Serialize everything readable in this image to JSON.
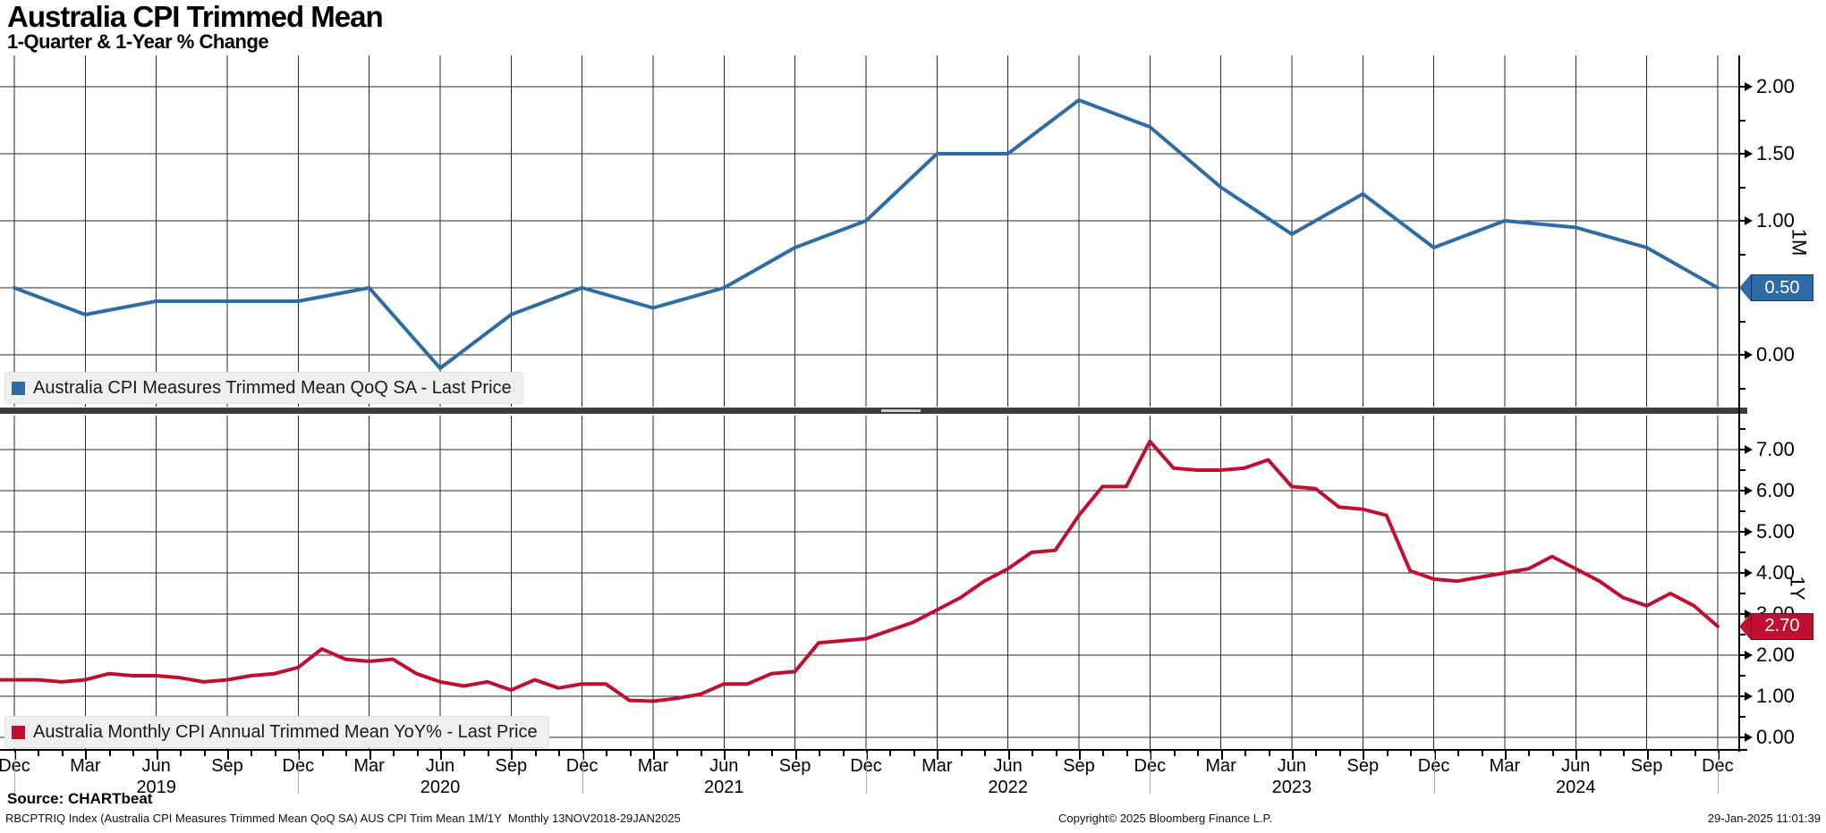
{
  "header": {
    "title": "Australia CPI Trimmed Mean",
    "subtitle": "1-Quarter & 1-Year % Change"
  },
  "colors": {
    "qoq_blue": "#2e6ca8",
    "yoy_red": "#c01031",
    "legend_bg": "#efefef",
    "grid": "#2a2a2a"
  },
  "chart_data": [
    {
      "type": "line",
      "panel": "top",
      "legend": "Australia CPI Measures Trimmed Mean QoQ SA - Last Price",
      "axis_panel_label": "1M",
      "last_price_label": "0.50",
      "line_color": "#2e6ca8",
      "ylim": [
        -0.39,
        2.23
      ],
      "y_ticks": [
        {
          "label": "2.00",
          "value": 2.0
        },
        {
          "label": "1.50",
          "value": 1.5
        },
        {
          "label": "1.00",
          "value": 1.0
        },
        {
          "label": "0.50",
          "value": 0.5
        },
        {
          "label": "0.00",
          "value": 0.0
        }
      ],
      "frequency": "quarterly",
      "x_quarters": [
        "Dec-2018",
        "Mar-2019",
        "Jun-2019",
        "Sep-2019",
        "Dec-2019",
        "Mar-2020",
        "Jun-2020",
        "Sep-2020",
        "Dec-2020",
        "Mar-2021",
        "Jun-2021",
        "Sep-2021",
        "Dec-2021",
        "Mar-2022",
        "Jun-2022",
        "Sep-2022",
        "Dec-2022",
        "Mar-2023",
        "Jun-2023",
        "Sep-2023",
        "Dec-2023",
        "Mar-2024",
        "Jun-2024",
        "Sep-2024",
        "Dec-2024"
      ],
      "values": [
        0.5,
        0.3,
        0.4,
        0.4,
        0.4,
        0.5,
        -0.1,
        0.3,
        0.5,
        0.35,
        0.5,
        0.8,
        1.0,
        1.5,
        1.5,
        1.9,
        1.7,
        1.25,
        0.9,
        1.2,
        0.8,
        1.0,
        0.95,
        0.8,
        0.5
      ]
    },
    {
      "type": "line",
      "panel": "bottom",
      "legend": "Australia Monthly CPI Annual Trimmed Mean YoY% - Last Price",
      "axis_panel_label": "1Y",
      "last_price_label": "2.70",
      "line_color": "#c01031",
      "ylim": [
        -0.28,
        7.83
      ],
      "y_ticks": [
        {
          "label": "7.00",
          "value": 7.0
        },
        {
          "label": "6.00",
          "value": 6.0
        },
        {
          "label": "5.00",
          "value": 5.0
        },
        {
          "label": "4.00",
          "value": 4.0
        },
        {
          "label": "3.00",
          "value": 3.0
        },
        {
          "label": "2.00",
          "value": 2.0
        },
        {
          "label": "1.00",
          "value": 1.0
        },
        {
          "label": "0.00",
          "value": 0.0
        }
      ],
      "frequency": "monthly",
      "start_month": "Nov-2018",
      "values": [
        1.4,
        1.4,
        1.4,
        1.35,
        1.4,
        1.55,
        1.5,
        1.5,
        1.45,
        1.35,
        1.4,
        1.5,
        1.55,
        1.7,
        2.15,
        1.9,
        1.85,
        1.9,
        1.55,
        1.35,
        1.25,
        1.35,
        1.15,
        1.4,
        1.2,
        1.3,
        1.3,
        0.9,
        0.88,
        0.95,
        1.05,
        1.3,
        1.3,
        1.55,
        1.6,
        2.3,
        2.35,
        2.4,
        2.6,
        2.8,
        3.1,
        3.4,
        3.8,
        4.1,
        4.5,
        4.55,
        5.4,
        6.1,
        6.1,
        7.2,
        6.55,
        6.5,
        6.5,
        6.55,
        6.75,
        6.1,
        6.05,
        5.6,
        5.55,
        5.4,
        4.05,
        3.85,
        3.8,
        3.9,
        4.0,
        4.1,
        4.4,
        4.1,
        3.8,
        3.4,
        3.2,
        3.5,
        3.2,
        2.7
      ]
    }
  ],
  "x_axis": {
    "quarter_labels": [
      "Dec",
      "Mar",
      "Jun",
      "Sep",
      "Dec",
      "Mar",
      "Jun",
      "Sep",
      "Dec",
      "Mar",
      "Jun",
      "Sep",
      "Dec",
      "Mar",
      "Jun",
      "Sep",
      "Dec",
      "Mar",
      "Jun",
      "Sep",
      "Dec",
      "Mar",
      "Jun",
      "Sep",
      "Dec"
    ],
    "year_labels": [
      {
        "text": "2019",
        "quarter_index": 2
      },
      {
        "text": "2020",
        "quarter_index": 6
      },
      {
        "text": "2021",
        "quarter_index": 10
      },
      {
        "text": "2022",
        "quarter_index": 14
      },
      {
        "text": "2023",
        "quarter_index": 18
      },
      {
        "text": "2024",
        "quarter_index": 22
      }
    ]
  },
  "footer": {
    "source": "Source: CHARTbeat",
    "description": "RBCPTRIQ Index (Australia CPI Measures Trimmed Mean QoQ SA) AUS CPI Trim Mean 1M/1Y  Monthly 13NOV2018-29JAN2025",
    "copyright": "Copyright© 2025 Bloomberg Finance L.P.",
    "timestamp": "29-Jan-2025 11:01:39"
  }
}
